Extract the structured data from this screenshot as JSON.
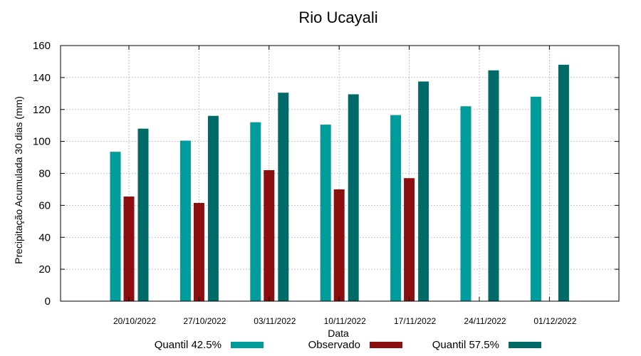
{
  "chart_data": {
    "type": "bar",
    "title": "Rio Ucayali",
    "xlabel": "Data",
    "ylabel": "Precipitação Acumulada 30 dias (mm)",
    "ylim": [
      0,
      160
    ],
    "yticks": [
      0,
      20,
      40,
      60,
      80,
      100,
      120,
      140,
      160
    ],
    "grid": true,
    "legend_position": "bottom",
    "categories": [
      "20/10/2022",
      "27/10/2022",
      "03/11/2022",
      "10/11/2022",
      "17/11/2022",
      "24/11/2022",
      "01/12/2022"
    ],
    "series": [
      {
        "name": "Quantil 42.5%",
        "color": "#009b9b",
        "values": [
          93.5,
          100.5,
          112,
          110.5,
          116.5,
          122,
          128
        ]
      },
      {
        "name": "Observado",
        "color": "#8b0f0f",
        "values": [
          65.5,
          61.5,
          82,
          70,
          77,
          null,
          null
        ]
      },
      {
        "name": "Quantil 57.5%",
        "color": "#006b66",
        "values": [
          108,
          116,
          130.5,
          129.5,
          137.5,
          144.5,
          148
        ]
      }
    ]
  }
}
